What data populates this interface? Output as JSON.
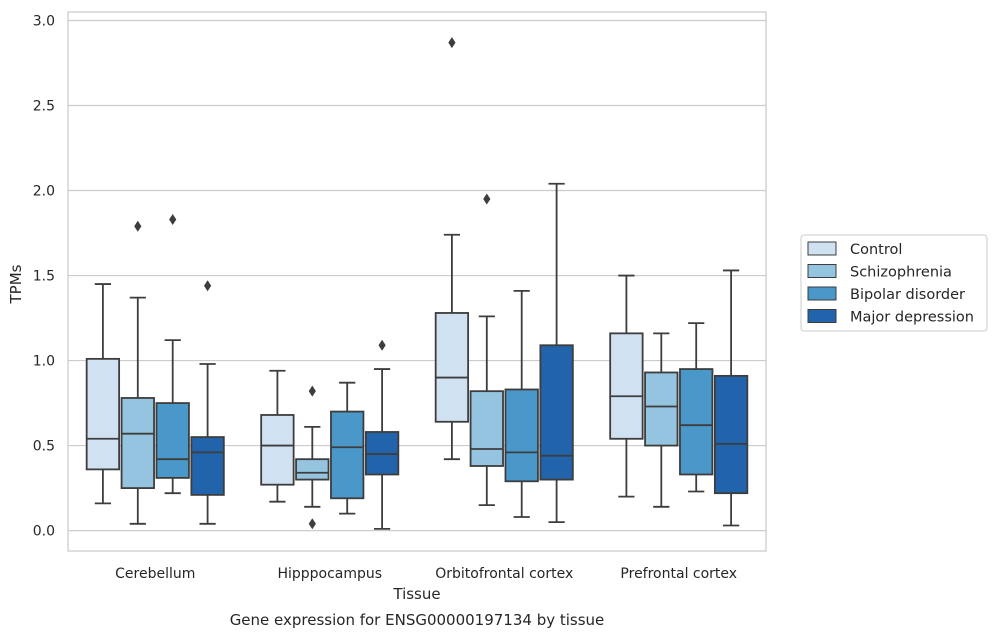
{
  "chart_data": {
    "type": "box",
    "categories": [
      "Cerebellum",
      "Hipppocampus",
      "Orbitofrontal cortex",
      "Prefrontal cortex"
    ],
    "series": [
      {
        "name": "Control",
        "color": "#d0e1f2",
        "boxes": [
          {
            "whislo": 0.16,
            "q1": 0.36,
            "med": 0.54,
            "q3": 1.01,
            "whishi": 1.45,
            "fliers": []
          },
          {
            "whislo": 0.17,
            "q1": 0.27,
            "med": 0.5,
            "q3": 0.68,
            "whishi": 0.94,
            "fliers": []
          },
          {
            "whislo": 0.42,
            "q1": 0.64,
            "med": 0.9,
            "q3": 1.28,
            "whishi": 1.74,
            "fliers": [
              2.87
            ]
          },
          {
            "whislo": 0.2,
            "q1": 0.54,
            "med": 0.79,
            "q3": 1.16,
            "whishi": 1.5,
            "fliers": []
          }
        ]
      },
      {
        "name": "Schizophrenia",
        "color": "#94c4df",
        "boxes": [
          {
            "whislo": 0.04,
            "q1": 0.25,
            "med": 0.57,
            "q3": 0.78,
            "whishi": 1.37,
            "fliers": [
              1.79
            ]
          },
          {
            "whislo": 0.14,
            "q1": 0.3,
            "med": 0.34,
            "q3": 0.42,
            "whishi": 0.61,
            "fliers": [
              0.82,
              0.04
            ]
          },
          {
            "whislo": 0.15,
            "q1": 0.38,
            "med": 0.48,
            "q3": 0.82,
            "whishi": 1.26,
            "fliers": [
              1.95
            ]
          },
          {
            "whislo": 0.14,
            "q1": 0.5,
            "med": 0.73,
            "q3": 0.93,
            "whishi": 1.16,
            "fliers": []
          }
        ]
      },
      {
        "name": "Bipolar disorder",
        "color": "#4a98c9",
        "boxes": [
          {
            "whislo": 0.22,
            "q1": 0.31,
            "med": 0.42,
            "q3": 0.75,
            "whishi": 1.12,
            "fliers": [
              1.83
            ]
          },
          {
            "whislo": 0.1,
            "q1": 0.19,
            "med": 0.49,
            "q3": 0.7,
            "whishi": 0.87,
            "fliers": []
          },
          {
            "whislo": 0.08,
            "q1": 0.29,
            "med": 0.46,
            "q3": 0.83,
            "whishi": 1.41,
            "fliers": []
          },
          {
            "whislo": 0.23,
            "q1": 0.33,
            "med": 0.62,
            "q3": 0.95,
            "whishi": 1.22,
            "fliers": []
          }
        ]
      },
      {
        "name": "Major depression",
        "color": "#2164ab",
        "boxes": [
          {
            "whislo": 0.04,
            "q1": 0.21,
            "med": 0.46,
            "q3": 0.55,
            "whishi": 0.98,
            "fliers": [
              1.44
            ]
          },
          {
            "whislo": 0.01,
            "q1": 0.33,
            "med": 0.45,
            "q3": 0.58,
            "whishi": 0.95,
            "fliers": [
              1.09
            ]
          },
          {
            "whislo": 0.05,
            "q1": 0.3,
            "med": 0.44,
            "q3": 1.09,
            "whishi": 2.04,
            "fliers": []
          },
          {
            "whislo": 0.03,
            "q1": 0.22,
            "med": 0.51,
            "q3": 0.91,
            "whishi": 1.53,
            "fliers": []
          }
        ]
      }
    ],
    "xlabel": "Tissue",
    "ylabel": "TPMs",
    "caption": "Gene expression for ENSG00000197134 by tissue",
    "ylim": [
      -0.12,
      3.05
    ],
    "yticks": [
      0.0,
      0.5,
      1.0,
      1.5,
      2.0,
      2.5,
      3.0
    ],
    "ytick_labels": [
      "0.0",
      "0.5",
      "1.0",
      "1.5",
      "2.0",
      "2.5",
      "3.0"
    ],
    "grid": "horizontal",
    "legend_position": "right"
  }
}
